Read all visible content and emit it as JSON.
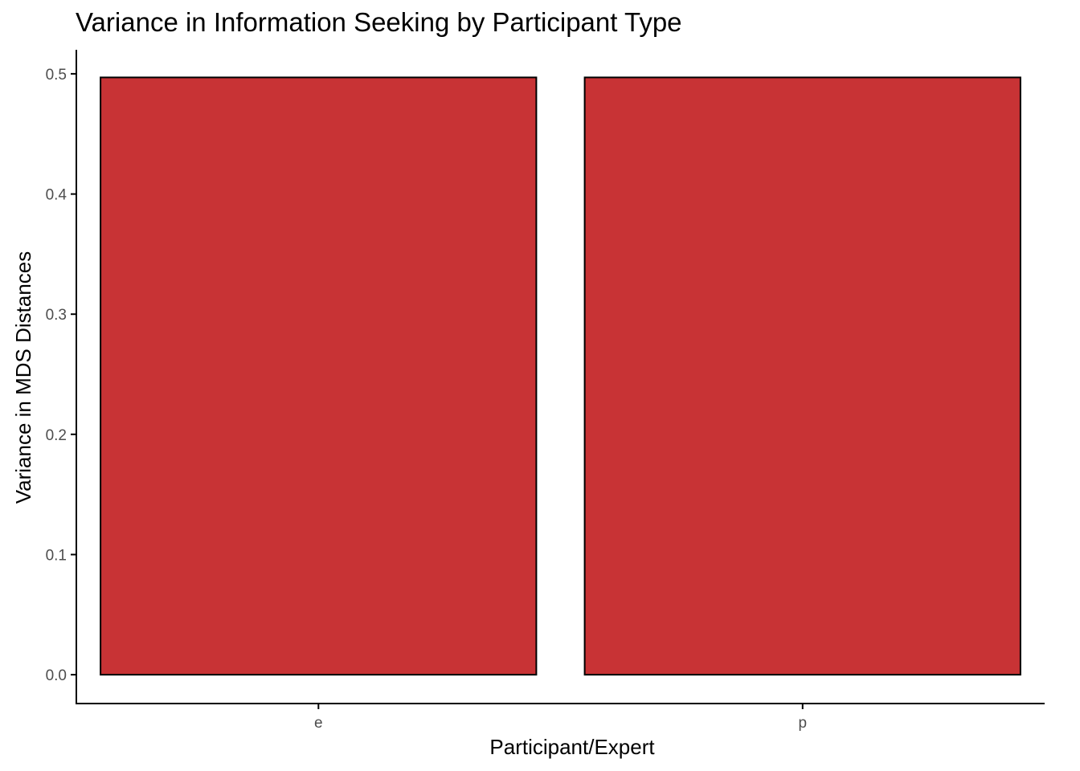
{
  "chart_data": {
    "type": "bar",
    "title": "Variance in Information Seeking by Participant Type",
    "xlabel": "Participant/Expert",
    "ylabel": "Variance in MDS Distances",
    "categories": [
      "e",
      "p"
    ],
    "values": [
      0.497,
      0.497
    ],
    "ylim": [
      -0.024,
      0.52
    ],
    "yticks": [
      0.0,
      0.1,
      0.2,
      0.3,
      0.4,
      0.5
    ],
    "ytick_labels": [
      "0.0",
      "0.1",
      "0.2",
      "0.3",
      "0.4",
      "0.5"
    ],
    "grid": false,
    "legend": "none",
    "colors": {
      "bar_fill": "#c83335",
      "bar_outline": "#000000",
      "axis_line": "#000000",
      "tick_text": "#4d4d4d",
      "background": "#ffffff"
    }
  }
}
